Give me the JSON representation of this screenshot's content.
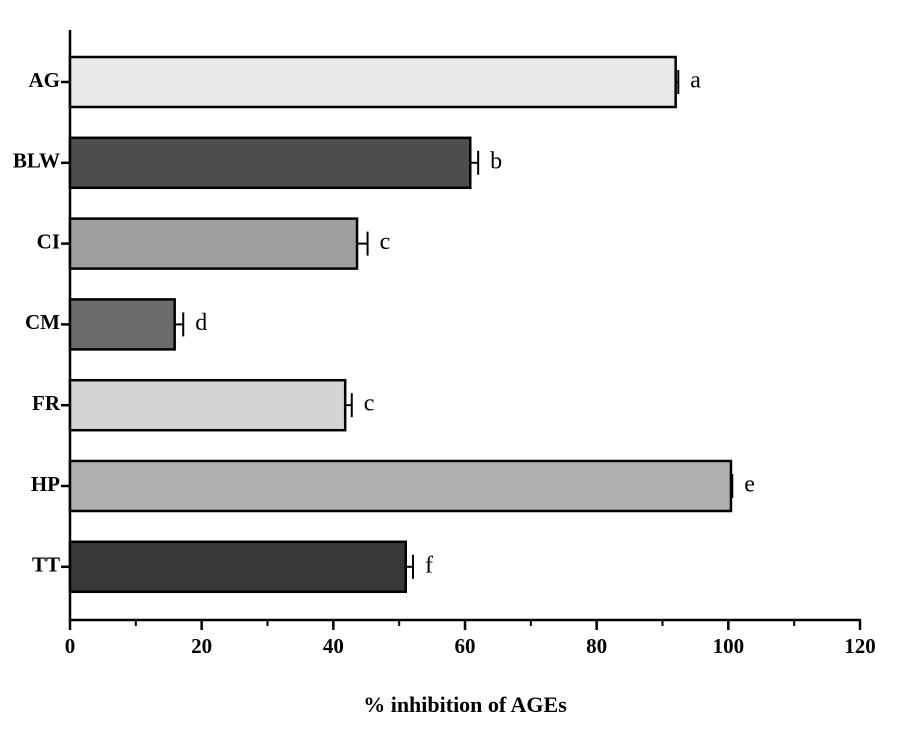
{
  "chart_data": {
    "type": "hbar",
    "x_label": "% inhibition of AGEs",
    "categories": [
      "AG",
      "BLW",
      "CI",
      "CM",
      "FR",
      "HP",
      "TT"
    ],
    "values": [
      92,
      60.8,
      43.6,
      15.9,
      41.8,
      100.4,
      51
    ],
    "errors": [
      0.4,
      1.2,
      1.6,
      1.3,
      1.0,
      0.2,
      1.1
    ],
    "letters": [
      "a",
      "b",
      "c",
      "d",
      "c",
      "e",
      "f"
    ],
    "colors": [
      "#e8e8e8",
      "#4d4d4d",
      "#9e9e9e",
      "#6b6b6b",
      "#d4d4d4",
      "#b0b0b0",
      "#383838"
    ],
    "xlim": [
      0,
      120
    ],
    "xticks": [
      0,
      20,
      40,
      60,
      80,
      100,
      120
    ],
    "xminor": [
      10,
      30,
      50,
      70,
      90,
      110
    ],
    "grid": false
  }
}
